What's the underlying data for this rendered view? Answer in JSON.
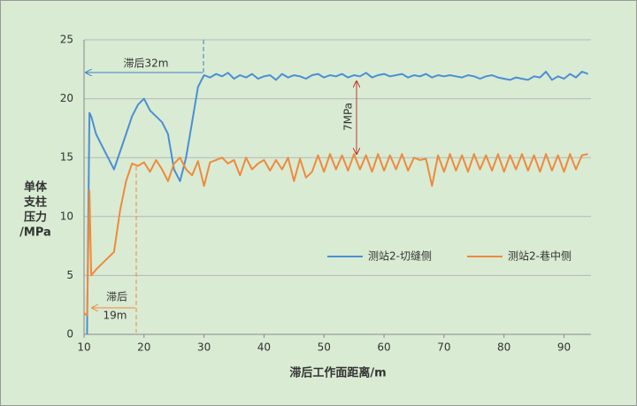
{
  "chart_data": {
    "type": "line",
    "x_label": "滞后工作面距离/m",
    "y_label_lines": [
      "单体",
      "支柱",
      "压力",
      "/MPa"
    ],
    "annotations": [
      "滞后32m",
      "滞后",
      "19m",
      "7MPa"
    ],
    "x": [
      10,
      10.5,
      10.9,
      11.2,
      12,
      13,
      14,
      15,
      16,
      17,
      18,
      19,
      20,
      21,
      22,
      23,
      24,
      25,
      26,
      27,
      28,
      29,
      30,
      31,
      32,
      33,
      34,
      35,
      36,
      37,
      38,
      39,
      40,
      41,
      42,
      43,
      44,
      45,
      46,
      47,
      48,
      49,
      50,
      51,
      52,
      53,
      54,
      55,
      56,
      57,
      58,
      59,
      60,
      61,
      62,
      63,
      64,
      65,
      66,
      67,
      68,
      69,
      70,
      71,
      72,
      73,
      74,
      75,
      76,
      77,
      78,
      79,
      80,
      81,
      82,
      83,
      84,
      85,
      86,
      87,
      88,
      89,
      90,
      91,
      92,
      93,
      94
    ],
    "series": [
      {
        "name": "测站2-切缝侧",
        "color": "#4a8fd4",
        "values": [
          null,
          0,
          18.8,
          18.5,
          17,
          16,
          15,
          14,
          15.5,
          17,
          18.5,
          19.5,
          20,
          19,
          18.5,
          18,
          17,
          14,
          13,
          15,
          18,
          21,
          22,
          21.8,
          22.1,
          21.9,
          22.2,
          21.7,
          22,
          21.8,
          22.1,
          21.7,
          21.9,
          22,
          21.6,
          22.1,
          21.8,
          22,
          21.9,
          21.7,
          22,
          22.1,
          21.8,
          22,
          21.9,
          22.1,
          21.8,
          22,
          21.9,
          22.2,
          21.8,
          22,
          22.1,
          21.9,
          22,
          22.1,
          21.8,
          22,
          21.9,
          22.1,
          21.8,
          22,
          21.9,
          22,
          21.9,
          21.8,
          22,
          21.9,
          21.7,
          21.9,
          22,
          21.8,
          21.7,
          21.6,
          21.8,
          21.7,
          21.6,
          21.9,
          21.8,
          22.3,
          21.6,
          21.9,
          21.7,
          22.1,
          21.8,
          22.3,
          22.1
        ]
      },
      {
        "name": "测站2-巷中侧",
        "color": "#ef8a3c",
        "values": [
          1.8,
          1.6,
          12.2,
          5,
          5.5,
          6,
          6.5,
          7,
          10.5,
          13,
          14.5,
          14.3,
          14.6,
          13.8,
          14.8,
          14,
          13,
          14.5,
          15,
          14,
          13.5,
          14.7,
          12.6,
          14.6,
          14.8,
          15,
          14.5,
          14.8,
          13.5,
          15,
          14,
          14.5,
          14.8,
          13.9,
          14.8,
          14,
          15,
          13,
          14.9,
          13.3,
          13.8,
          15.2,
          13.8,
          15.3,
          14,
          15.2,
          13.9,
          15.3,
          14,
          15.2,
          13.8,
          15.3,
          13.9,
          15.2,
          14,
          15.3,
          13.9,
          15,
          14.8,
          14.9,
          12.6,
          15.2,
          13.8,
          15.3,
          13.9,
          15.2,
          13.8,
          15.3,
          14,
          15.2,
          13.9,
          15.3,
          13.8,
          15.2,
          14,
          15.3,
          13.9,
          15.2,
          13.8,
          15.3,
          13.9,
          15.2,
          13.8,
          15.3,
          14,
          15.2,
          15.3
        ]
      }
    ],
    "xlim": [
      10,
      94.5
    ],
    "ylim": [
      0,
      25
    ],
    "xticks": [
      10,
      20,
      30,
      40,
      50,
      60,
      70,
      80,
      90
    ],
    "yticks": [
      0,
      5,
      10,
      15,
      20,
      25
    ],
    "grid": true
  }
}
